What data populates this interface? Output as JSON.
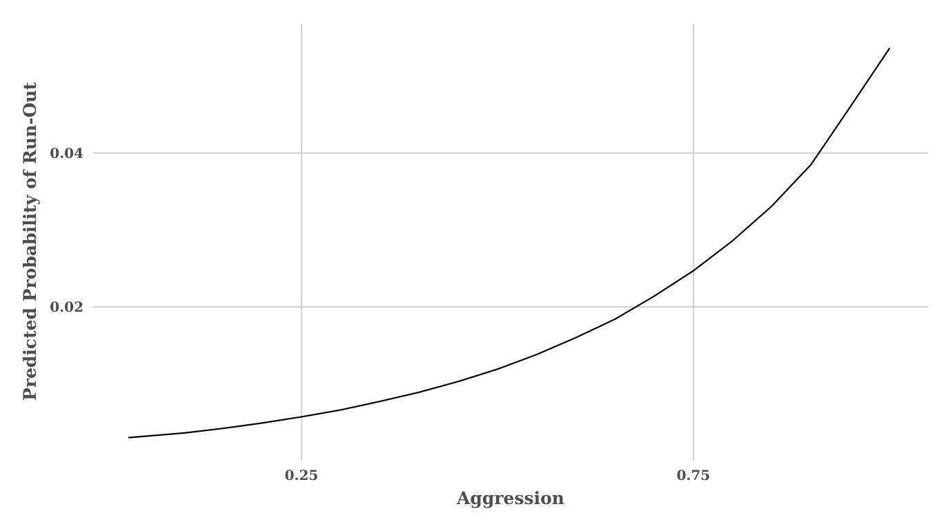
{
  "chart_data": {
    "type": "line",
    "xlabel": "Aggression",
    "ylabel": "Predicted Probability of Run-Out",
    "xlim": [
      0.0,
      1.0
    ],
    "ylim": [
      0.0,
      0.055
    ],
    "x_ticks": [
      {
        "value": 0.25,
        "label": "0.25"
      },
      {
        "value": 0.75,
        "label": "0.75"
      }
    ],
    "y_ticks": [
      {
        "value": 0.02,
        "label": "0.02"
      },
      {
        "value": 0.04,
        "label": "0.04"
      }
    ],
    "grid": true,
    "series": [
      {
        "color": "#000000",
        "x": [
          0.03,
          0.1,
          0.15,
          0.2,
          0.25,
          0.3,
          0.35,
          0.4,
          0.45,
          0.5,
          0.55,
          0.6,
          0.65,
          0.7,
          0.75,
          0.8,
          0.85,
          0.9,
          0.95,
          1.0
        ],
        "y": [
          0.003,
          0.0036,
          0.0042,
          0.0049,
          0.0057,
          0.0066,
          0.0077,
          0.0089,
          0.0103,
          0.0119,
          0.0138,
          0.016,
          0.0184,
          0.0214,
          0.0247,
          0.0286,
          0.0331,
          0.0385,
          0.046,
          0.0536
        ]
      }
    ]
  }
}
